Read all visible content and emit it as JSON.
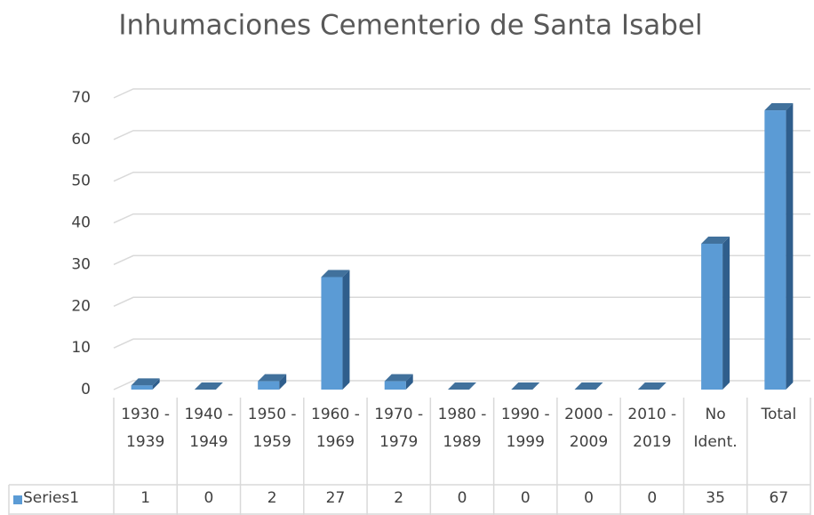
{
  "chart_data": {
    "type": "bar3d",
    "title": "Inhumaciones Cementerio de Santa Isabel",
    "categories": [
      "1930 - 1939",
      "1940 - 1949",
      "1950 - 1959",
      "1960 - 1969",
      "1970 - 1979",
      "1980 - 1989",
      "1990 - 1999",
      "2000 - 2009",
      "2010 - 2019",
      "No Ident.",
      "Total"
    ],
    "series": [
      {
        "name": "Series1",
        "color": "#5b9bd5",
        "values": [
          1,
          0,
          2,
          27,
          2,
          0,
          0,
          0,
          0,
          35,
          67
        ]
      }
    ],
    "ylim": [
      0,
      70
    ],
    "yticks": [
      0,
      10,
      20,
      30,
      40,
      50,
      60,
      70
    ],
    "grid": true,
    "data_table": true
  }
}
